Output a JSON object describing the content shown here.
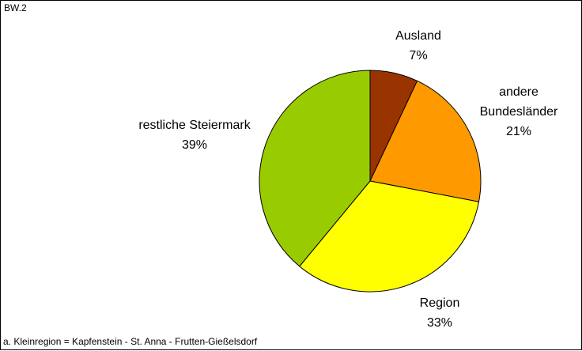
{
  "chart_data": {
    "type": "pie",
    "title": "BW.2",
    "categories": [
      "Ausland",
      "andere Bundesländer",
      "Region",
      "restliche Steiermark"
    ],
    "values": [
      7,
      21,
      33,
      39
    ],
    "value_labels": [
      "7%",
      "21%",
      "33%",
      "39%"
    ],
    "colors": [
      "#993300",
      "#ff9900",
      "#ffff00",
      "#99cc00"
    ],
    "footnote": "a. Kleinregion = Kapfenstein - St. Anna - Frutten-Gießelsdorf"
  }
}
